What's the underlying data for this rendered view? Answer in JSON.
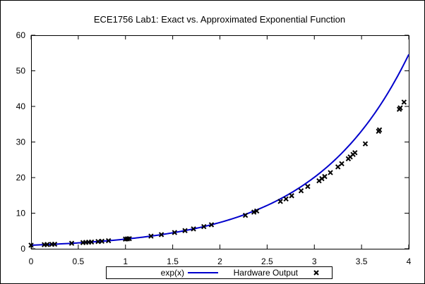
{
  "chart_data": {
    "type": "line",
    "title": "ECE1756 Lab1: Exact vs. Approximated Exponential Function",
    "xlabel": "",
    "ylabel": "",
    "xlim": [
      0,
      4
    ],
    "ylim": [
      0,
      60
    ],
    "x_ticks": [
      "0",
      "0.5",
      "1",
      "1.5",
      "2",
      "2.5",
      "3",
      "3.5",
      "4"
    ],
    "y_ticks": [
      "0",
      "10",
      "20",
      "30",
      "40",
      "50",
      "60"
    ],
    "grid": false,
    "legend_position": "bottom",
    "series": [
      {
        "name": "exp(x)",
        "kind": "line",
        "color": "#0000cc",
        "function": "exp(x)",
        "x_range": [
          0,
          4
        ]
      },
      {
        "name": "Hardware Output",
        "kind": "scatter",
        "marker": "x",
        "color": "#000000",
        "points": [
          [
            0.0,
            1.0
          ],
          [
            0.14,
            1.15
          ],
          [
            0.17,
            1.19
          ],
          [
            0.22,
            1.25
          ],
          [
            0.25,
            1.28
          ],
          [
            0.43,
            1.54
          ],
          [
            0.55,
            1.73
          ],
          [
            0.58,
            1.79
          ],
          [
            0.61,
            1.84
          ],
          [
            0.64,
            1.9
          ],
          [
            0.71,
            2.03
          ],
          [
            0.75,
            2.12
          ],
          [
            0.82,
            2.27
          ],
          [
            1.0,
            2.72
          ],
          [
            1.02,
            2.77
          ],
          [
            1.04,
            2.83
          ],
          [
            1.27,
            3.56
          ],
          [
            1.38,
            3.97
          ],
          [
            1.52,
            4.57
          ],
          [
            1.63,
            5.1
          ],
          [
            1.72,
            5.58
          ],
          [
            1.83,
            6.23
          ],
          [
            1.91,
            6.75
          ],
          [
            2.27,
            9.4
          ],
          [
            2.36,
            10.3
          ],
          [
            2.39,
            10.6
          ],
          [
            2.64,
            13.3
          ],
          [
            2.7,
            14.0
          ],
          [
            2.76,
            14.9
          ],
          [
            2.86,
            16.3
          ],
          [
            2.93,
            17.5
          ],
          [
            3.05,
            19.1
          ],
          [
            3.08,
            19.7
          ],
          [
            3.11,
            20.3
          ],
          [
            3.17,
            21.4
          ],
          [
            3.25,
            23.0
          ],
          [
            3.29,
            23.9
          ],
          [
            3.36,
            25.3
          ],
          [
            3.38,
            25.8
          ],
          [
            3.41,
            26.5
          ],
          [
            3.43,
            27.0
          ],
          [
            3.54,
            29.5
          ],
          [
            3.68,
            33.0
          ],
          [
            3.69,
            33.4
          ],
          [
            3.9,
            39.2
          ],
          [
            3.91,
            39.6
          ],
          [
            3.95,
            41.2
          ]
        ]
      }
    ]
  }
}
